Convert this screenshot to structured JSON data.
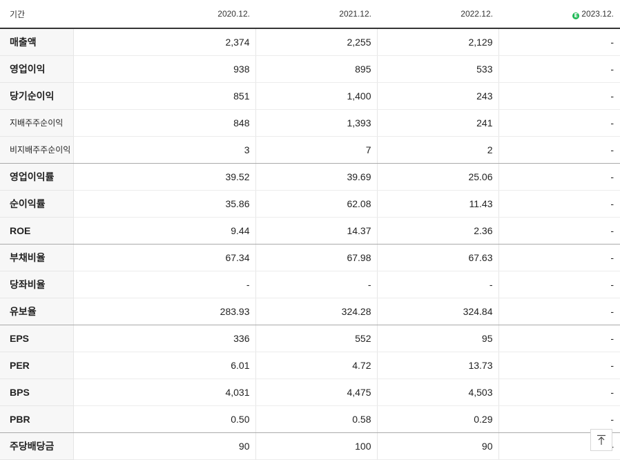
{
  "header": {
    "period_label": "기간",
    "columns": [
      {
        "label": "2020.12.",
        "estimate": false
      },
      {
        "label": "2021.12.",
        "estimate": false
      },
      {
        "label": "2022.12.",
        "estimate": false
      },
      {
        "label": "2023.12.",
        "estimate": true,
        "badge": "E"
      }
    ]
  },
  "rows": [
    {
      "label": "매출액",
      "small": false,
      "values": [
        "2,374",
        "2,255",
        "2,129",
        "-"
      ]
    },
    {
      "label": "영업이익",
      "small": false,
      "values": [
        "938",
        "895",
        "533",
        "-"
      ]
    },
    {
      "label": "당기순이익",
      "small": false,
      "values": [
        "851",
        "1,400",
        "243",
        "-"
      ]
    },
    {
      "label": "지배주주순이익",
      "small": true,
      "values": [
        "848",
        "1,393",
        "241",
        "-"
      ]
    },
    {
      "label": "비지배주주순이익",
      "small": true,
      "values": [
        "3",
        "7",
        "2",
        "-"
      ],
      "group_end": true
    },
    {
      "label": "영업이익률",
      "small": false,
      "values": [
        "39.52",
        "39.69",
        "25.06",
        "-"
      ]
    },
    {
      "label": "순이익률",
      "small": false,
      "values": [
        "35.86",
        "62.08",
        "11.43",
        "-"
      ]
    },
    {
      "label": "ROE",
      "small": false,
      "values": [
        "9.44",
        "14.37",
        "2.36",
        "-"
      ],
      "group_end": true
    },
    {
      "label": "부채비율",
      "small": false,
      "values": [
        "67.34",
        "67.98",
        "67.63",
        "-"
      ]
    },
    {
      "label": "당좌비율",
      "small": false,
      "values": [
        "-",
        "-",
        "-",
        "-"
      ]
    },
    {
      "label": "유보율",
      "small": false,
      "values": [
        "283.93",
        "324.28",
        "324.84",
        "-"
      ],
      "group_end": true
    },
    {
      "label": "EPS",
      "small": false,
      "values": [
        "336",
        "552",
        "95",
        "-"
      ]
    },
    {
      "label": "PER",
      "small": false,
      "values": [
        "6.01",
        "4.72",
        "13.73",
        "-"
      ]
    },
    {
      "label": "BPS",
      "small": false,
      "values": [
        "4,031",
        "4,475",
        "4,503",
        "-"
      ]
    },
    {
      "label": "PBR",
      "small": false,
      "values": [
        "0.50",
        "0.58",
        "0.29",
        "-"
      ],
      "group_end": true
    },
    {
      "label": "주당배당금",
      "small": false,
      "values": [
        "90",
        "100",
        "90",
        "-"
      ]
    }
  ],
  "colors": {
    "estimate_badge": "#1db954",
    "row_label_bg": "#f7f7f7"
  },
  "scroll_top_button": {
    "icon": "arrow-up-to-top-icon"
  }
}
